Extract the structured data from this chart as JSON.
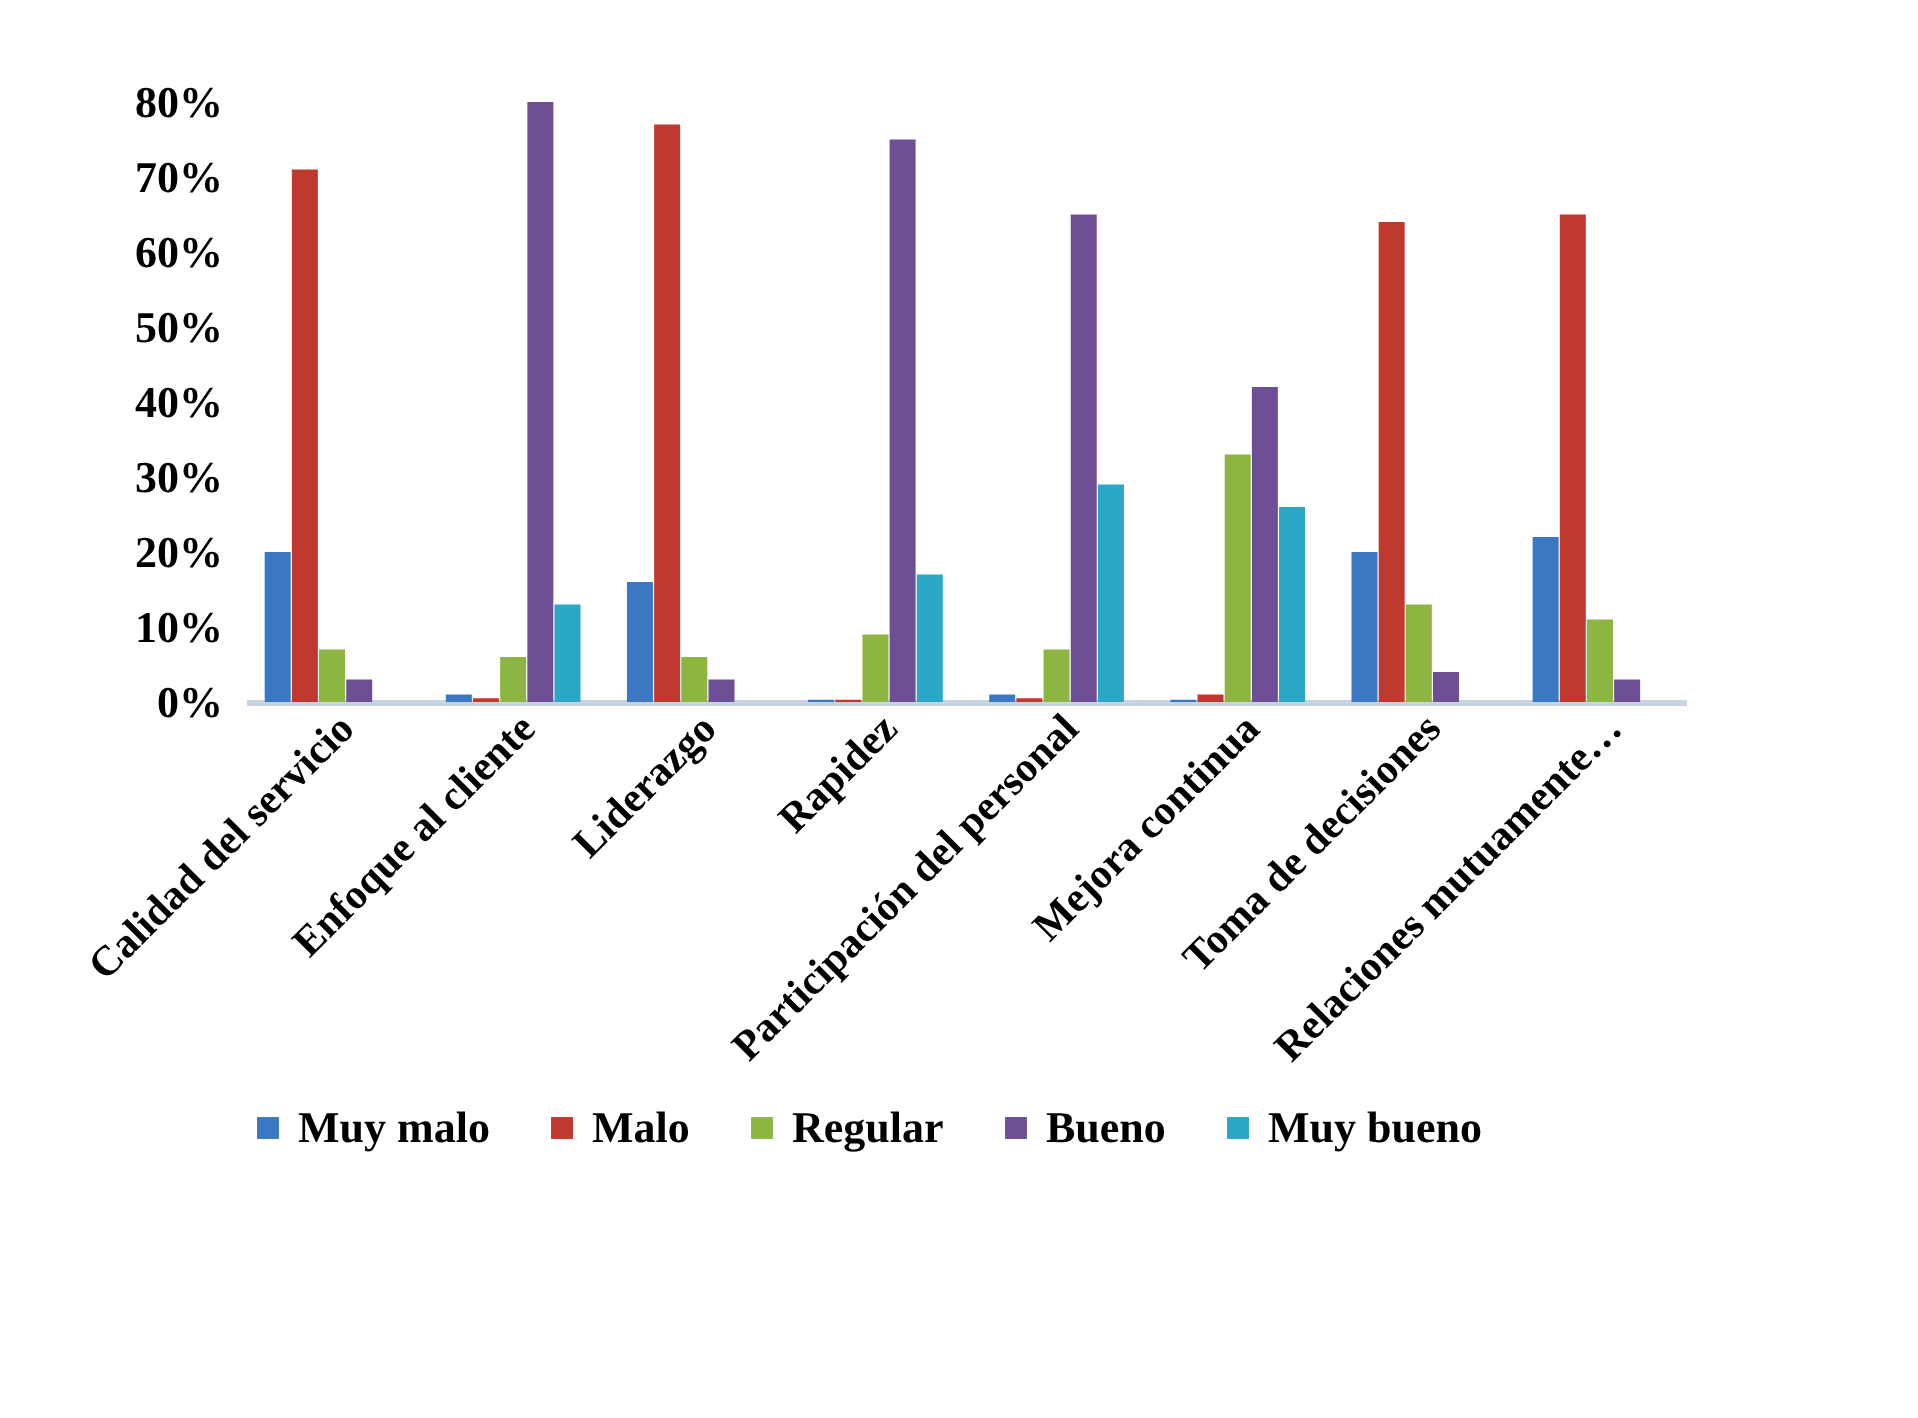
{
  "chart_data": {
    "type": "bar",
    "categories": [
      "Calidad del servicio",
      "Enfoque al cliente",
      "Liderazgo",
      "Rapidez",
      "Participación del personal",
      "Mejora continua",
      "Toma de decisiones",
      "Relaciones mutuamente…"
    ],
    "series": [
      {
        "name": "Muy malo",
        "color": "#3a78c4",
        "values": [
          0.2,
          0.01,
          0.16,
          0.003,
          0.01,
          0.003,
          0.2,
          0.22
        ]
      },
      {
        "name": "Malo",
        "color": "#c0392f",
        "values": [
          0.71,
          0.005,
          0.77,
          0.003,
          0.005,
          0.01,
          0.64,
          0.65
        ]
      },
      {
        "name": "Regular",
        "color": "#8db541",
        "values": [
          0.07,
          0.06,
          0.06,
          0.09,
          0.07,
          0.33,
          0.13,
          0.11
        ]
      },
      {
        "name": "Bueno",
        "color": "#6e4f96",
        "values": [
          0.03,
          0.8,
          0.03,
          0.75,
          0.65,
          0.42,
          0.04,
          0.03
        ]
      },
      {
        "name": "Muy bueno",
        "color": "#2aa6c6",
        "values": [
          0.0,
          0.13,
          0.0,
          0.17,
          0.29,
          0.26,
          0.0,
          0.0
        ]
      }
    ],
    "ylim": [
      0,
      0.8
    ],
    "yticks": [
      {
        "value": 0,
        "label": "0%"
      },
      {
        "value": 0.1,
        "label": "10%"
      },
      {
        "value": 0.2,
        "label": "20%"
      },
      {
        "value": 0.3,
        "label": "30%"
      },
      {
        "value": 0.4,
        "label": "40%"
      },
      {
        "value": 0.5,
        "label": "50%"
      },
      {
        "value": 0.6,
        "label": "60%"
      },
      {
        "value": 0.7,
        "label": "70%"
      },
      {
        "value": 0.8,
        "label": "80%"
      }
    ],
    "grid": false,
    "legend": "bottom"
  }
}
